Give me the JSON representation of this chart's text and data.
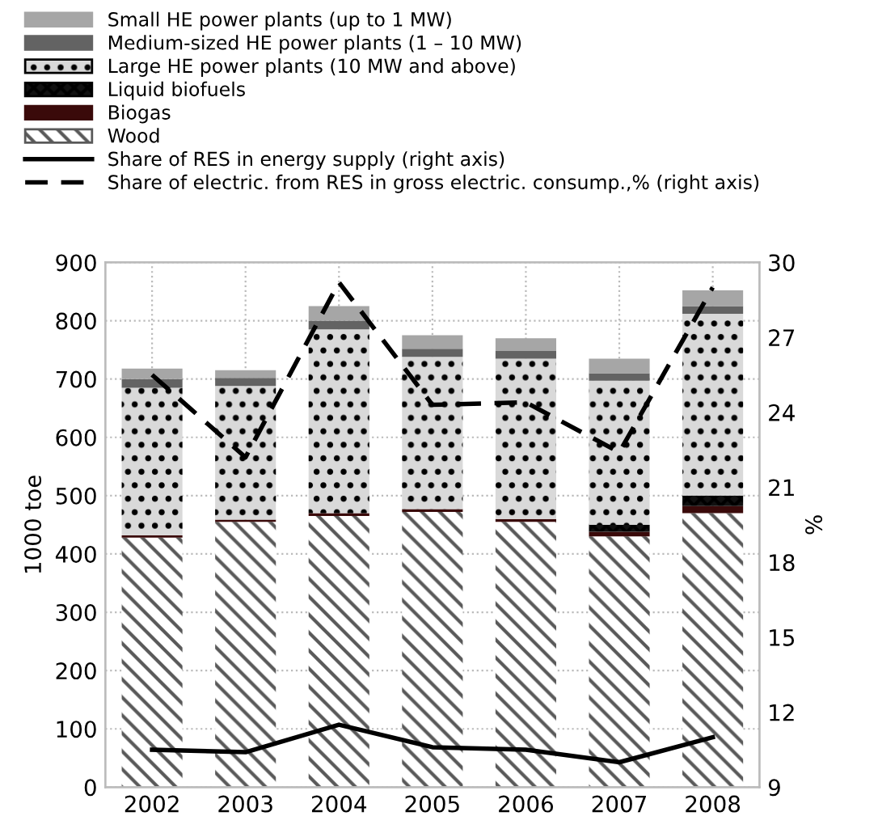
{
  "chart_data": {
    "type": "bar",
    "stacked": true,
    "ylabel": "1000 toe",
    "y2label": "%",
    "categories": [
      "2002",
      "2003",
      "2004",
      "2005",
      "2006",
      "2007",
      "2008"
    ],
    "series": [
      {
        "name": "Wood",
        "color": "#595959",
        "values": [
          428,
          455,
          465,
          472,
          455,
          430,
          470
        ]
      },
      {
        "name": "Biogas",
        "color": "#3a0a0a",
        "values": [
          4,
          4,
          5,
          5,
          5,
          8,
          12
        ]
      },
      {
        "name": "Liquid biofuels",
        "color": "#111111",
        "values": [
          0,
          0,
          0,
          0,
          0,
          12,
          18
        ]
      },
      {
        "name": "Large HE power plants (10 MW and above)",
        "color": "#d9d9d9",
        "values": [
          253,
          229,
          315,
          261,
          275,
          247,
          312
        ]
      },
      {
        "name": "Medium-sized HE power plants (1 – 10 MW)",
        "color": "#636363",
        "values": [
          15,
          14,
          15,
          14,
          13,
          13,
          13
        ]
      },
      {
        "name": "Small HE power plants (up to 1 MW)",
        "color": "#a6a6a6",
        "values": [
          18,
          13,
          25,
          23,
          22,
          25,
          27
        ]
      },
      {
        "name": "Share of RES in energy supply (right axis)",
        "type": "line",
        "axis": "y2",
        "color": "#000000",
        "line_style": "solid",
        "values": [
          10.5,
          10.4,
          11.5,
          10.6,
          10.5,
          10.0,
          11.0
        ]
      },
      {
        "name": "Share of electric. from RES in gross electric. consump.,% (right axis)",
        "type": "line",
        "axis": "y2",
        "color": "#000000",
        "line_style": "dashed",
        "values": [
          25.5,
          22.2,
          29.2,
          24.3,
          24.4,
          22.4,
          29.0
        ]
      }
    ],
    "ylim": [
      0,
      900
    ],
    "yticks": [
      0,
      100,
      200,
      300,
      400,
      500,
      600,
      700,
      800,
      900
    ],
    "y2lim": [
      9,
      30
    ],
    "y2ticks": [
      9,
      12,
      15,
      18,
      21,
      24,
      27,
      30
    ],
    "grid": true,
    "legend": "top"
  }
}
